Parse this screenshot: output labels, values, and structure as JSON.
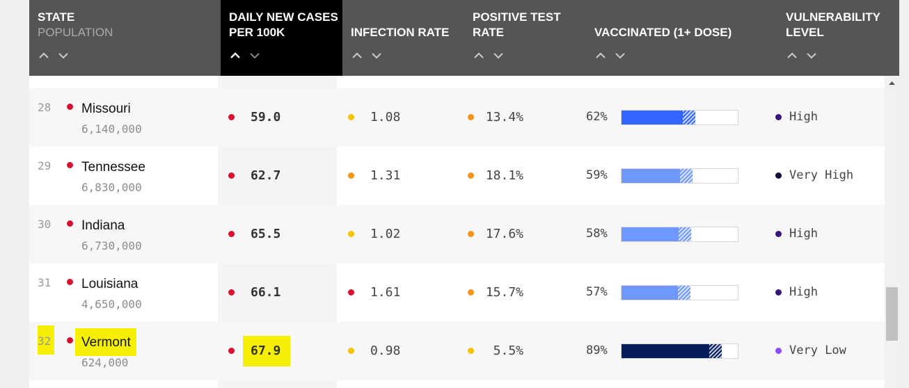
{
  "header": {
    "state": "STATE",
    "population": "POPULATION",
    "daily_cases_line1": "DAILY NEW CASES",
    "daily_cases_line2": "PER 100K",
    "infection_rate": "INFECTION RATE",
    "positive_test_line1": "POSITIVE TEST",
    "positive_test_line2": "RATE",
    "vaccinated": "VACCINATED (1+ DOSE)",
    "vulnerability_line1": "VULNERABILITY",
    "vulnerability_line2": "LEVEL"
  },
  "colors": {
    "header_bg": "#555555",
    "active_header_bg": "#000000",
    "state_dot": "#d7112f",
    "highlight": "#f5ef05",
    "vaccine_dark": "#041e5b",
    "vaccine_blue": "#3366ff",
    "vaccine_light": "#6f98ff"
  },
  "rows": [
    {
      "rank": "28",
      "state": "Missouri",
      "population": "6,140,000",
      "cases": "59.0",
      "cases_dot": "#d7112f",
      "infection": "1.08",
      "infection_dot": "#f5c400",
      "positive": "13.4%",
      "positive_dot": "#f7941d",
      "vaccinated_pct": "62%",
      "vaccinated_value": 62,
      "vacc_color": "#3366ff",
      "vulnerability": "High",
      "vuln_dot": "#35157a"
    },
    {
      "rank": "29",
      "state": "Tennessee",
      "population": "6,830,000",
      "cases": "62.7",
      "cases_dot": "#d7112f",
      "infection": "1.31",
      "infection_dot": "#f7941d",
      "positive": "18.1%",
      "positive_dot": "#f7941d",
      "vaccinated_pct": "59%",
      "vaccinated_value": 59,
      "vacc_color": "#6f98ff",
      "vulnerability": "Very High",
      "vuln_dot": "#150b3d"
    },
    {
      "rank": "30",
      "state": "Indiana",
      "population": "6,730,000",
      "cases": "65.5",
      "cases_dot": "#d7112f",
      "infection": "1.02",
      "infection_dot": "#f5c400",
      "positive": "17.6%",
      "positive_dot": "#f7941d",
      "vaccinated_pct": "58%",
      "vaccinated_value": 58,
      "vacc_color": "#6f98ff",
      "vulnerability": "High",
      "vuln_dot": "#35157a"
    },
    {
      "rank": "31",
      "state": "Louisiana",
      "population": "4,650,000",
      "cases": "66.1",
      "cases_dot": "#d7112f",
      "infection": "1.61",
      "infection_dot": "#d7112f",
      "positive": "15.7%",
      "positive_dot": "#f7941d",
      "vaccinated_pct": "57%",
      "vaccinated_value": 57,
      "vacc_color": "#6f98ff",
      "vulnerability": "High",
      "vuln_dot": "#35157a"
    },
    {
      "rank": "32",
      "state": "Vermont",
      "population": "624,000",
      "cases": "67.9",
      "cases_dot": "#d7112f",
      "infection": "0.98",
      "infection_dot": "#f5c400",
      "positive": "5.5%",
      "positive_dot": "#f5c400",
      "vaccinated_pct": "89%",
      "vaccinated_value": 89,
      "vacc_color": "#041e5b",
      "vulnerability": "Very Low",
      "vuln_dot": "#8a4cff",
      "highlighted": true
    }
  ]
}
